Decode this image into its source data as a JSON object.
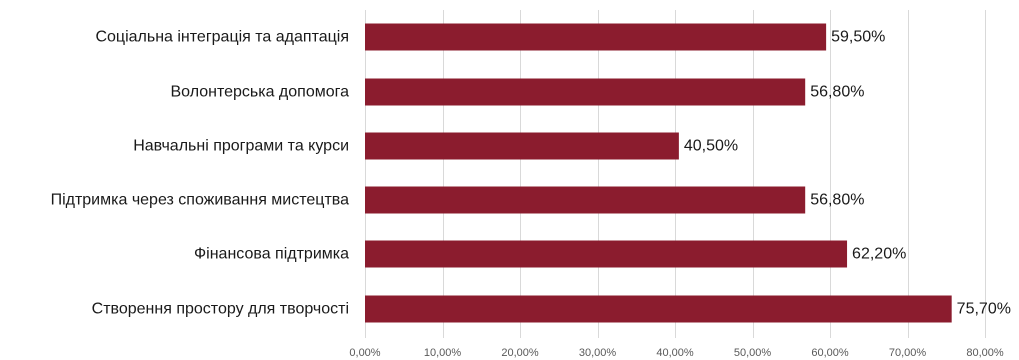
{
  "chart_data": {
    "type": "bar",
    "orientation": "horizontal",
    "title": "",
    "xlabel": "",
    "ylabel": "",
    "categories": [
      "Соціальна інтеграція та адаптація",
      "Волонтерська допомога",
      "Навчальні програми та курси",
      "Підтримка через споживання мистецтва",
      "Фінансова підтримка",
      "Створення простору для творчості"
    ],
    "values": [
      59.5,
      56.8,
      40.5,
      56.8,
      62.2,
      75.7
    ],
    "value_labels": [
      "59,50%",
      "56,80%",
      "40,50%",
      "56,80%",
      "62,20%",
      "75,70%"
    ],
    "xlim": [
      0,
      80
    ],
    "ticks": [
      0,
      10,
      20,
      30,
      40,
      50,
      60,
      70,
      80
    ],
    "tick_labels": [
      "0,00%",
      "10,00%",
      "20,00%",
      "30,00%",
      "40,00%",
      "50,00%",
      "60,00%",
      "70,00%",
      "80,00%"
    ],
    "grid": true,
    "legend": "none",
    "bar_color": "#8B1C2E"
  }
}
